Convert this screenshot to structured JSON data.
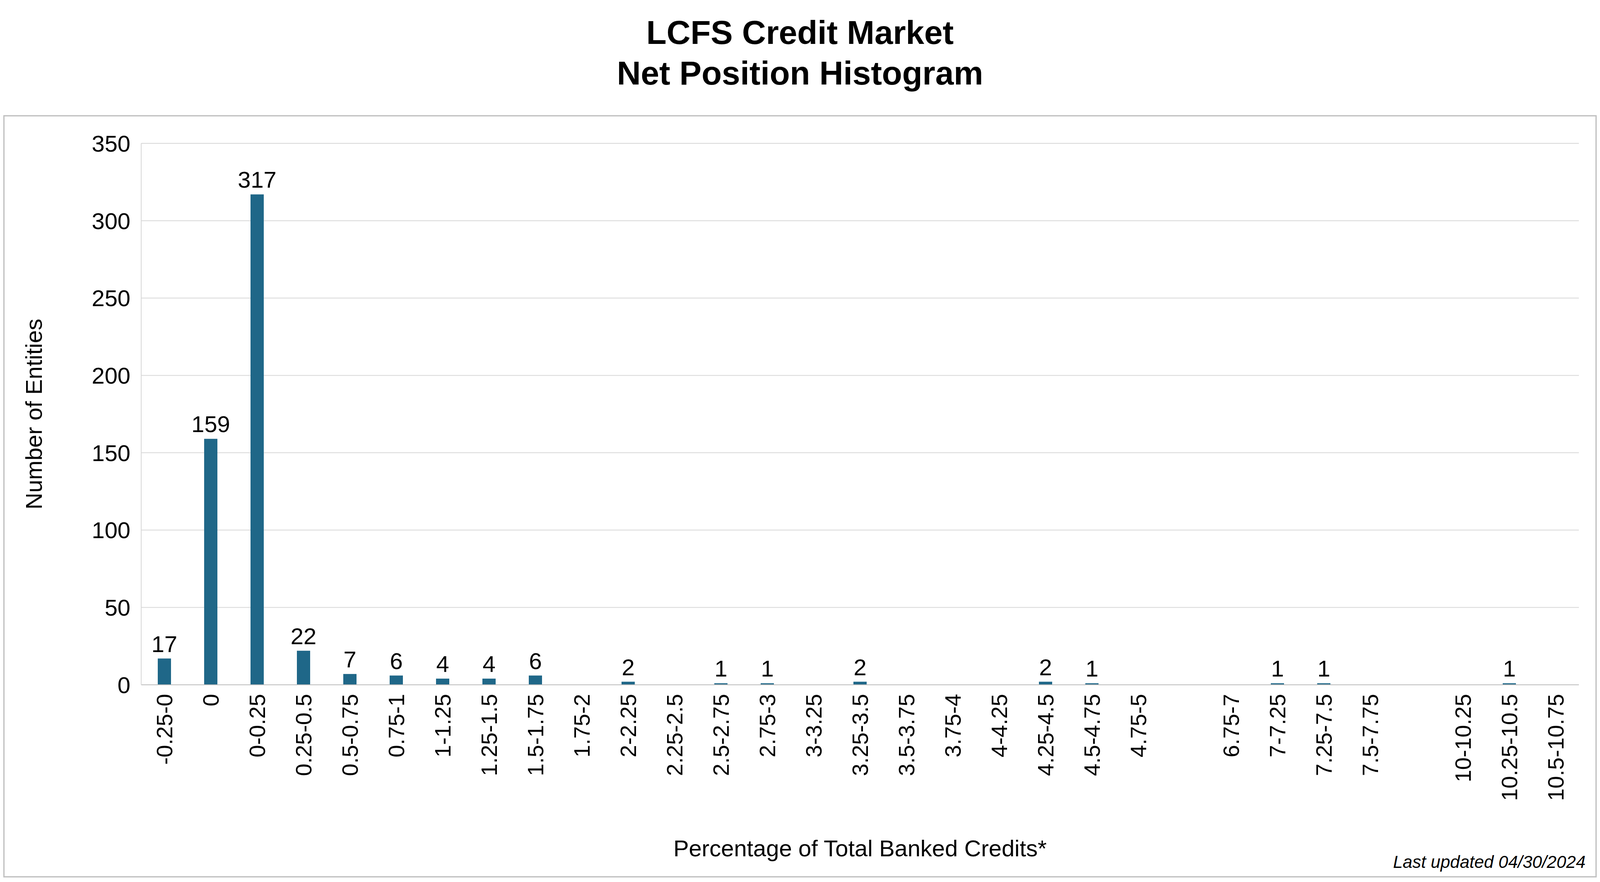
{
  "chart_data": {
    "type": "bar",
    "title": "LCFS Credit Market\nNet Position Histogram",
    "x_label": "Percentage of Total Banked Credits*",
    "y_label": "Number of Entities",
    "annotation": "Last updated 04/30/2024",
    "categories": [
      "-0.25-0",
      "0",
      "0-0.25",
      "0.25-0.5",
      "0.5-0.75",
      "0.75-1",
      "1-1.25",
      "1.25-1.5",
      "1.5-1.75",
      "1.75-2",
      "2-2.25",
      "2.25-2.5",
      "2.5-2.75",
      "2.75-3",
      "3-3.25",
      "3.25-3.5",
      "3.5-3.75",
      "3.75-4",
      "4-4.25",
      "4.25-4.5",
      "4.5-4.75",
      "4.75-5",
      null,
      "6.75-7",
      "7-7.25",
      "7.25-7.5",
      "7.5-7.75",
      null,
      "10-10.25",
      "10.25-10.5",
      "10.5-10.75"
    ],
    "values": [
      17,
      159,
      317,
      22,
      7,
      6,
      4,
      4,
      6,
      0,
      2,
      0,
      1,
      1,
      0,
      2,
      0,
      0,
      0,
      2,
      1,
      0,
      null,
      0,
      1,
      1,
      0,
      null,
      0,
      1,
      0
    ],
    "color": "#1f6788",
    "ylim": [
      0,
      350
    ],
    "yticks": [
      0,
      50,
      100,
      150,
      200,
      250,
      300,
      350
    ],
    "grid": true,
    "data_labels": true
  }
}
